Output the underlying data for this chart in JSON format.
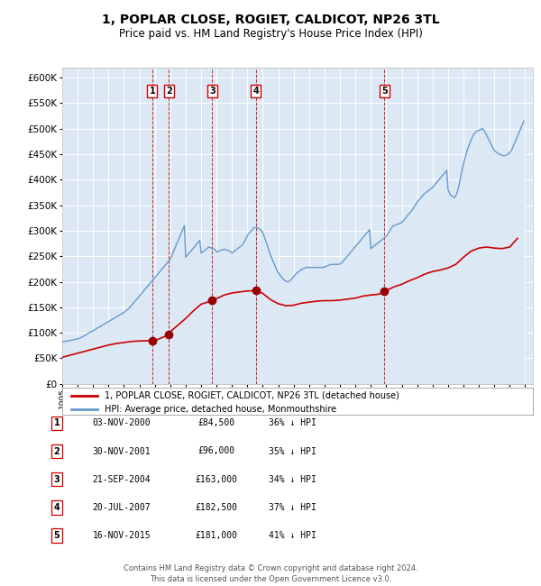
{
  "title": "1, POPLAR CLOSE, ROGIET, CALDICOT, NP26 3TL",
  "subtitle": "Price paid vs. HM Land Registry's House Price Index (HPI)",
  "title_fontsize": 10,
  "subtitle_fontsize": 8.5,
  "ylim": [
    0,
    620000
  ],
  "yticks": [
    0,
    50000,
    100000,
    150000,
    200000,
    250000,
    300000,
    350000,
    400000,
    450000,
    500000,
    550000,
    600000
  ],
  "xlim_start": 1995.0,
  "xlim_end": 2025.5,
  "background_color": "#ffffff",
  "plot_bg_color": "#dce9f5",
  "grid_color": "#ffffff",
  "hpi_line_color": "#6699cc",
  "hpi_fill_color": "#dce9f5",
  "price_line_color": "#cc0000",
  "price_dot_color": "#990000",
  "vline_color": "#cc0000",
  "legend_label_price": "1, POPLAR CLOSE, ROGIET, CALDICOT, NP26 3TL (detached house)",
  "legend_label_hpi": "HPI: Average price, detached house, Monmouthshire",
  "transactions": [
    {
      "num": 1,
      "date_label": "03-NOV-2000",
      "price": 84500,
      "pct": "36%",
      "x": 2000.839
    },
    {
      "num": 2,
      "date_label": "30-NOV-2001",
      "price": 96000,
      "pct": "35%",
      "x": 2001.912
    },
    {
      "num": 3,
      "date_label": "21-SEP-2004",
      "price": 163000,
      "pct": "34%",
      "x": 2004.722
    },
    {
      "num": 4,
      "date_label": "20-JUL-2007",
      "price": 182500,
      "pct": "37%",
      "x": 2007.55
    },
    {
      "num": 5,
      "date_label": "16-NOV-2015",
      "price": 181000,
      "pct": "41%",
      "x": 2015.876
    }
  ],
  "footer_line1": "Contains HM Land Registry data © Crown copyright and database right 2024.",
  "footer_line2": "This data is licensed under the Open Government Licence v3.0.",
  "hpi_data_x": [
    1995.0,
    1995.083,
    1995.167,
    1995.25,
    1995.333,
    1995.417,
    1995.5,
    1995.583,
    1995.667,
    1995.75,
    1995.833,
    1995.917,
    1996.0,
    1996.083,
    1996.167,
    1996.25,
    1996.333,
    1996.417,
    1996.5,
    1996.583,
    1996.667,
    1996.75,
    1996.833,
    1996.917,
    1997.0,
    1997.083,
    1997.167,
    1997.25,
    1997.333,
    1997.417,
    1997.5,
    1997.583,
    1997.667,
    1997.75,
    1997.833,
    1997.917,
    1998.0,
    1998.083,
    1998.167,
    1998.25,
    1998.333,
    1998.417,
    1998.5,
    1998.583,
    1998.667,
    1998.75,
    1998.833,
    1998.917,
    1999.0,
    1999.083,
    1999.167,
    1999.25,
    1999.333,
    1999.417,
    1999.5,
    1999.583,
    1999.667,
    1999.75,
    1999.833,
    1999.917,
    2000.0,
    2000.083,
    2000.167,
    2000.25,
    2000.333,
    2000.417,
    2000.5,
    2000.583,
    2000.667,
    2000.75,
    2000.833,
    2000.917,
    2001.0,
    2001.083,
    2001.167,
    2001.25,
    2001.333,
    2001.417,
    2001.5,
    2001.583,
    2001.667,
    2001.75,
    2001.833,
    2001.917,
    2002.0,
    2002.083,
    2002.167,
    2002.25,
    2002.333,
    2002.417,
    2002.5,
    2002.583,
    2002.667,
    2002.75,
    2002.833,
    2002.917,
    2003.0,
    2003.083,
    2003.167,
    2003.25,
    2003.333,
    2003.417,
    2003.5,
    2003.583,
    2003.667,
    2003.75,
    2003.833,
    2003.917,
    2004.0,
    2004.083,
    2004.167,
    2004.25,
    2004.333,
    2004.417,
    2004.5,
    2004.583,
    2004.667,
    2004.75,
    2004.833,
    2004.917,
    2005.0,
    2005.083,
    2005.167,
    2005.25,
    2005.333,
    2005.417,
    2005.5,
    2005.583,
    2005.667,
    2005.75,
    2005.833,
    2005.917,
    2006.0,
    2006.083,
    2006.167,
    2006.25,
    2006.333,
    2006.417,
    2006.5,
    2006.583,
    2006.667,
    2006.75,
    2006.833,
    2006.917,
    2007.0,
    2007.083,
    2007.167,
    2007.25,
    2007.333,
    2007.417,
    2007.5,
    2007.583,
    2007.667,
    2007.75,
    2007.833,
    2007.917,
    2008.0,
    2008.083,
    2008.167,
    2008.25,
    2008.333,
    2008.417,
    2008.5,
    2008.583,
    2008.667,
    2008.75,
    2008.833,
    2008.917,
    2009.0,
    2009.083,
    2009.167,
    2009.25,
    2009.333,
    2009.417,
    2009.5,
    2009.583,
    2009.667,
    2009.75,
    2009.833,
    2009.917,
    2010.0,
    2010.083,
    2010.167,
    2010.25,
    2010.333,
    2010.417,
    2010.5,
    2010.583,
    2010.667,
    2010.75,
    2010.833,
    2010.917,
    2011.0,
    2011.083,
    2011.167,
    2011.25,
    2011.333,
    2011.417,
    2011.5,
    2011.583,
    2011.667,
    2011.75,
    2011.833,
    2011.917,
    2012.0,
    2012.083,
    2012.167,
    2012.25,
    2012.333,
    2012.417,
    2012.5,
    2012.583,
    2012.667,
    2012.75,
    2012.833,
    2012.917,
    2013.0,
    2013.083,
    2013.167,
    2013.25,
    2013.333,
    2013.417,
    2013.5,
    2013.583,
    2013.667,
    2013.75,
    2013.833,
    2013.917,
    2014.0,
    2014.083,
    2014.167,
    2014.25,
    2014.333,
    2014.417,
    2014.5,
    2014.583,
    2014.667,
    2014.75,
    2014.833,
    2014.917,
    2015.0,
    2015.083,
    2015.167,
    2015.25,
    2015.333,
    2015.417,
    2015.5,
    2015.583,
    2015.667,
    2015.75,
    2015.833,
    2015.917,
    2016.0,
    2016.083,
    2016.167,
    2016.25,
    2016.333,
    2016.417,
    2016.5,
    2016.583,
    2016.667,
    2016.75,
    2016.833,
    2016.917,
    2017.0,
    2017.083,
    2017.167,
    2017.25,
    2017.333,
    2017.417,
    2017.5,
    2017.583,
    2017.667,
    2017.75,
    2017.833,
    2017.917,
    2018.0,
    2018.083,
    2018.167,
    2018.25,
    2018.333,
    2018.417,
    2018.5,
    2018.583,
    2018.667,
    2018.75,
    2018.833,
    2018.917,
    2019.0,
    2019.083,
    2019.167,
    2019.25,
    2019.333,
    2019.417,
    2019.5,
    2019.583,
    2019.667,
    2019.75,
    2019.833,
    2019.917,
    2020.0,
    2020.083,
    2020.167,
    2020.25,
    2020.333,
    2020.417,
    2020.5,
    2020.583,
    2020.667,
    2020.75,
    2020.833,
    2020.917,
    2021.0,
    2021.083,
    2021.167,
    2021.25,
    2021.333,
    2021.417,
    2021.5,
    2021.583,
    2021.667,
    2021.75,
    2021.833,
    2021.917,
    2022.0,
    2022.083,
    2022.167,
    2022.25,
    2022.333,
    2022.417,
    2022.5,
    2022.583,
    2022.667,
    2022.75,
    2022.833,
    2022.917,
    2023.0,
    2023.083,
    2023.167,
    2023.25,
    2023.333,
    2023.417,
    2023.5,
    2023.583,
    2023.667,
    2023.75,
    2023.833,
    2023.917,
    2024.0,
    2024.083,
    2024.167,
    2024.25,
    2024.333,
    2024.417,
    2024.5,
    2024.583,
    2024.667,
    2024.75,
    2024.833,
    2024.917
  ],
  "hpi_data_y": [
    82000,
    82500,
    83000,
    83500,
    84000,
    84500,
    85000,
    85500,
    86000,
    86500,
    87000,
    87500,
    88000,
    89000,
    90000,
    91000,
    92500,
    94000,
    95500,
    97000,
    98500,
    100000,
    101500,
    103000,
    104000,
    105500,
    107000,
    108500,
    110000,
    111500,
    113000,
    114500,
    116000,
    117500,
    119000,
    120500,
    122000,
    123500,
    125000,
    126500,
    128000,
    129500,
    131000,
    132500,
    134000,
    135500,
    137000,
    138500,
    140000,
    142000,
    144000,
    146000,
    148500,
    151000,
    154000,
    157000,
    160000,
    163000,
    166000,
    169000,
    172000,
    175000,
    178000,
    181000,
    184000,
    187000,
    190000,
    193000,
    196000,
    199000,
    202000,
    205000,
    208000,
    211000,
    214000,
    217000,
    220000,
    223000,
    226000,
    229000,
    232000,
    235000,
    238000,
    241000,
    244000,
    250000,
    256000,
    262000,
    268000,
    274000,
    280000,
    286000,
    292000,
    298000,
    304000,
    310000,
    248000,
    251000,
    254000,
    257000,
    260000,
    263000,
    266000,
    269000,
    272000,
    275000,
    278000,
    281000,
    256000,
    258000,
    260000,
    262000,
    264000,
    266000,
    268000,
    267000,
    266000,
    265000,
    264000,
    263000,
    258000,
    259000,
    260000,
    261000,
    262000,
    263000,
    264000,
    263000,
    262000,
    261000,
    260000,
    259000,
    256000,
    258000,
    260000,
    262000,
    264000,
    266000,
    268000,
    270000,
    272000,
    276000,
    280000,
    285000,
    291000,
    294000,
    297000,
    300000,
    303000,
    306000,
    306000,
    306000,
    306000,
    304000,
    302000,
    300000,
    296000,
    289000,
    282000,
    275000,
    267000,
    259000,
    252000,
    246000,
    240000,
    234000,
    228000,
    222000,
    218000,
    214000,
    211000,
    208000,
    205000,
    203000,
    201000,
    200000,
    200000,
    202000,
    204000,
    207000,
    210000,
    213000,
    216000,
    218000,
    220000,
    222000,
    224000,
    225000,
    226000,
    227000,
    228000,
    229000,
    228000,
    228000,
    228000,
    228000,
    228000,
    228000,
    228000,
    228000,
    228000,
    228000,
    228000,
    228000,
    229000,
    230000,
    231000,
    232000,
    233000,
    234000,
    234000,
    234000,
    234000,
    234000,
    234000,
    234000,
    235000,
    237000,
    239000,
    242000,
    245000,
    248000,
    251000,
    254000,
    257000,
    260000,
    263000,
    266000,
    269000,
    272000,
    275000,
    278000,
    281000,
    284000,
    287000,
    290000,
    293000,
    296000,
    299000,
    302000,
    265000,
    267000,
    269000,
    271000,
    273000,
    275000,
    277000,
    279000,
    281000,
    283000,
    285000,
    287000,
    289000,
    293000,
    297000,
    301000,
    305000,
    309000,
    310000,
    311000,
    312000,
    313000,
    314000,
    315000,
    316000,
    319000,
    322000,
    325000,
    328000,
    331000,
    334000,
    337000,
    340000,
    344000,
    348000,
    352000,
    356000,
    359000,
    362000,
    365000,
    368000,
    371000,
    373000,
    375000,
    377000,
    379000,
    381000,
    383000,
    385000,
    388000,
    391000,
    394000,
    397000,
    400000,
    403000,
    406000,
    409000,
    412000,
    415000,
    418000,
    380000,
    375000,
    370000,
    368000,
    366000,
    365000,
    368000,
    374000,
    383000,
    394000,
    407000,
    419000,
    431000,
    440000,
    449000,
    458000,
    465000,
    472000,
    478000,
    484000,
    489000,
    492000,
    494000,
    496000,
    496000,
    498000,
    499000,
    500000,
    496000,
    492000,
    487000,
    482000,
    477000,
    472000,
    467000,
    462000,
    457000,
    455000,
    453000,
    451000,
    450000,
    449000,
    448000,
    447000,
    447000,
    448000,
    449000,
    451000,
    453000,
    456000,
    461000,
    467000,
    473000,
    479000,
    485000,
    491000,
    497000,
    503000,
    509000,
    515000
  ],
  "price_data_x": [
    1995.0,
    1995.5,
    1996.0,
    1996.5,
    1997.0,
    1997.5,
    1998.0,
    1998.5,
    1999.0,
    1999.5,
    2000.0,
    2000.5,
    2000.839,
    2001.0,
    2001.5,
    2001.912,
    2002.0,
    2002.5,
    2003.0,
    2003.5,
    2004.0,
    2004.5,
    2004.722,
    2005.0,
    2005.5,
    2006.0,
    2006.5,
    2007.0,
    2007.5,
    2007.55,
    2008.0,
    2008.5,
    2009.0,
    2009.5,
    2010.0,
    2010.5,
    2011.0,
    2011.5,
    2012.0,
    2012.5,
    2013.0,
    2013.5,
    2014.0,
    2014.5,
    2015.0,
    2015.5,
    2015.876,
    2016.0,
    2016.5,
    2017.0,
    2017.5,
    2018.0,
    2018.5,
    2019.0,
    2019.5,
    2020.0,
    2020.5,
    2021.0,
    2021.5,
    2022.0,
    2022.5,
    2023.0,
    2023.5,
    2024.0,
    2024.5
  ],
  "price_data_y": [
    52000,
    56000,
    60000,
    64000,
    68000,
    72000,
    76000,
    79000,
    81000,
    83000,
    84000,
    84300,
    84500,
    84600,
    91000,
    96000,
    102000,
    115000,
    128000,
    143000,
    156000,
    161000,
    163000,
    167000,
    174000,
    178000,
    180000,
    182000,
    182400,
    182500,
    177000,
    165000,
    157000,
    153000,
    154000,
    158000,
    160000,
    162000,
    163000,
    163000,
    164000,
    166000,
    168000,
    172000,
    174000,
    175500,
    181000,
    183000,
    190000,
    195000,
    202000,
    208000,
    215000,
    220000,
    223000,
    227000,
    234000,
    248000,
    260000,
    266000,
    268000,
    266000,
    265000,
    268000,
    285000
  ]
}
